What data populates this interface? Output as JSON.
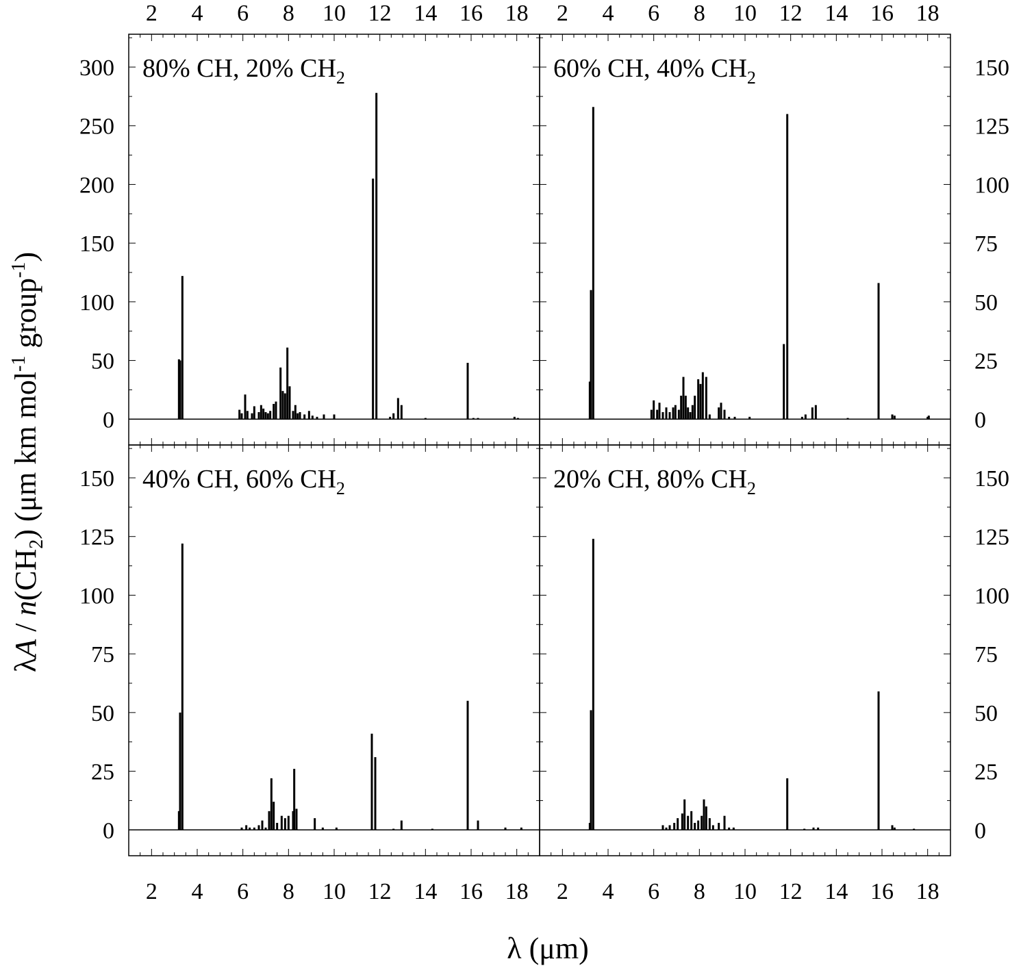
{
  "chart_data": {
    "type": "bar",
    "title": "",
    "xlabel": "λ (μm)",
    "ylabel_parts": {
      "lambda": "λ",
      "A": "A",
      "slash": " / ",
      "n": "n",
      "ch2_open": "(CH",
      "ch2_sub": "2",
      "ch2_close": ") (μm km mol",
      "mol_sup": "-1",
      "group": " group",
      "group_sup": "-1",
      "end": ")"
    },
    "xlim": [
      1,
      19
    ],
    "x_ticks": [
      "2",
      "4",
      "6",
      "8",
      "10",
      "12",
      "14",
      "16",
      "18"
    ],
    "grid": false,
    "panels": [
      {
        "label_main": "80% CH, 20% CH",
        "label_sub": "2",
        "ylim": [
          -22,
          328
        ],
        "y_ticks": [
          "0",
          "50",
          "100",
          "150",
          "200",
          "250",
          "300"
        ],
        "bars": [
          [
            3.2,
            51
          ],
          [
            3.25,
            50
          ],
          [
            3.35,
            122
          ],
          [
            5.85,
            8
          ],
          [
            5.95,
            5
          ],
          [
            6.1,
            21
          ],
          [
            6.2,
            7
          ],
          [
            6.4,
            5
          ],
          [
            6.5,
            11
          ],
          [
            6.7,
            6
          ],
          [
            6.8,
            12
          ],
          [
            6.9,
            9
          ],
          [
            7.0,
            6
          ],
          [
            7.1,
            5
          ],
          [
            7.2,
            7
          ],
          [
            7.35,
            13
          ],
          [
            7.45,
            15
          ],
          [
            7.65,
            44
          ],
          [
            7.75,
            24
          ],
          [
            7.85,
            22
          ],
          [
            7.95,
            61
          ],
          [
            8.05,
            28
          ],
          [
            8.2,
            7
          ],
          [
            8.3,
            12
          ],
          [
            8.4,
            5
          ],
          [
            8.5,
            6
          ],
          [
            8.7,
            4
          ],
          [
            8.9,
            7
          ],
          [
            9.05,
            3
          ],
          [
            9.25,
            2
          ],
          [
            9.55,
            4
          ],
          [
            10.0,
            4
          ],
          [
            11.7,
            205
          ],
          [
            11.85,
            278
          ],
          [
            12.45,
            2
          ],
          [
            12.6,
            5
          ],
          [
            12.8,
            18
          ],
          [
            12.95,
            12
          ],
          [
            14.0,
            1
          ],
          [
            15.85,
            48
          ],
          [
            16.1,
            1
          ],
          [
            16.3,
            1
          ],
          [
            17.9,
            2
          ],
          [
            18.05,
            1
          ]
        ]
      },
      {
        "label_main": "60% CH, 40% CH",
        "label_sub": "2",
        "ylim": [
          -11,
          164
        ],
        "y_ticks": [
          "0",
          "25",
          "50",
          "75",
          "100",
          "125",
          "150"
        ],
        "bars": [
          [
            3.2,
            16
          ],
          [
            3.25,
            55
          ],
          [
            3.35,
            133
          ],
          [
            5.9,
            4
          ],
          [
            6.0,
            8
          ],
          [
            6.15,
            4
          ],
          [
            6.25,
            7
          ],
          [
            6.4,
            3
          ],
          [
            6.55,
            5
          ],
          [
            6.7,
            3
          ],
          [
            6.85,
            5
          ],
          [
            6.95,
            6
          ],
          [
            7.1,
            4
          ],
          [
            7.2,
            10
          ],
          [
            7.3,
            18
          ],
          [
            7.4,
            10
          ],
          [
            7.5,
            5
          ],
          [
            7.6,
            3
          ],
          [
            7.7,
            6
          ],
          [
            7.8,
            10
          ],
          [
            7.95,
            17
          ],
          [
            8.05,
            15
          ],
          [
            8.15,
            20
          ],
          [
            8.3,
            18
          ],
          [
            8.45,
            2
          ],
          [
            8.85,
            5
          ],
          [
            8.95,
            7
          ],
          [
            9.1,
            4
          ],
          [
            9.3,
            1
          ],
          [
            9.55,
            1
          ],
          [
            10.2,
            1
          ],
          [
            11.7,
            32
          ],
          [
            11.85,
            130
          ],
          [
            12.5,
            1
          ],
          [
            12.65,
            2
          ],
          [
            12.95,
            5
          ],
          [
            13.1,
            6
          ],
          [
            14.5,
            0.5
          ],
          [
            15.85,
            58
          ],
          [
            16.45,
            2
          ],
          [
            16.55,
            1.5
          ],
          [
            18.0,
            1
          ],
          [
            18.05,
            1.5
          ]
        ]
      },
      {
        "label_main": "40% CH, 60% CH",
        "label_sub": "2",
        "ylim": [
          -11,
          164
        ],
        "y_ticks": [
          "0",
          "25",
          "50",
          "75",
          "100",
          "125",
          "150"
        ],
        "bars": [
          [
            3.2,
            8
          ],
          [
            3.25,
            50
          ],
          [
            3.35,
            122
          ],
          [
            5.95,
            1
          ],
          [
            6.15,
            2
          ],
          [
            6.3,
            1
          ],
          [
            6.5,
            1
          ],
          [
            6.7,
            2
          ],
          [
            6.85,
            4
          ],
          [
            7.0,
            1
          ],
          [
            7.15,
            8
          ],
          [
            7.25,
            22
          ],
          [
            7.35,
            12
          ],
          [
            7.5,
            3
          ],
          [
            7.7,
            6
          ],
          [
            7.85,
            5
          ],
          [
            8.0,
            6
          ],
          [
            8.2,
            8
          ],
          [
            8.25,
            26
          ],
          [
            8.35,
            9
          ],
          [
            9.15,
            5
          ],
          [
            9.5,
            1
          ],
          [
            10.1,
            1
          ],
          [
            11.65,
            41
          ],
          [
            11.8,
            31
          ],
          [
            12.6,
            0.5
          ],
          [
            12.95,
            4
          ],
          [
            14.3,
            0.5
          ],
          [
            15.85,
            55
          ],
          [
            16.3,
            4
          ],
          [
            17.5,
            1
          ],
          [
            18.2,
            1
          ]
        ]
      },
      {
        "label_main": "20% CH, 80% CH",
        "label_sub": "2",
        "ylim": [
          -11,
          164
        ],
        "y_ticks": [
          "0",
          "25",
          "50",
          "75",
          "100",
          "125",
          "150"
        ],
        "bars": [
          [
            3.2,
            3
          ],
          [
            3.25,
            51
          ],
          [
            3.35,
            124
          ],
          [
            6.4,
            2
          ],
          [
            6.55,
            1
          ],
          [
            6.7,
            2
          ],
          [
            6.9,
            3
          ],
          [
            7.05,
            5
          ],
          [
            7.25,
            7
          ],
          [
            7.35,
            13
          ],
          [
            7.5,
            6
          ],
          [
            7.65,
            8
          ],
          [
            7.8,
            3
          ],
          [
            7.95,
            4
          ],
          [
            8.1,
            6
          ],
          [
            8.2,
            13
          ],
          [
            8.3,
            10
          ],
          [
            8.45,
            5
          ],
          [
            8.6,
            2
          ],
          [
            8.85,
            3
          ],
          [
            9.1,
            6
          ],
          [
            9.3,
            1
          ],
          [
            9.5,
            1
          ],
          [
            11.85,
            22
          ],
          [
            12.6,
            0.5
          ],
          [
            13.0,
            1
          ],
          [
            13.2,
            1
          ],
          [
            15.85,
            59
          ],
          [
            16.45,
            2
          ],
          [
            16.55,
            1
          ],
          [
            17.4,
            0.5
          ]
        ]
      }
    ]
  }
}
